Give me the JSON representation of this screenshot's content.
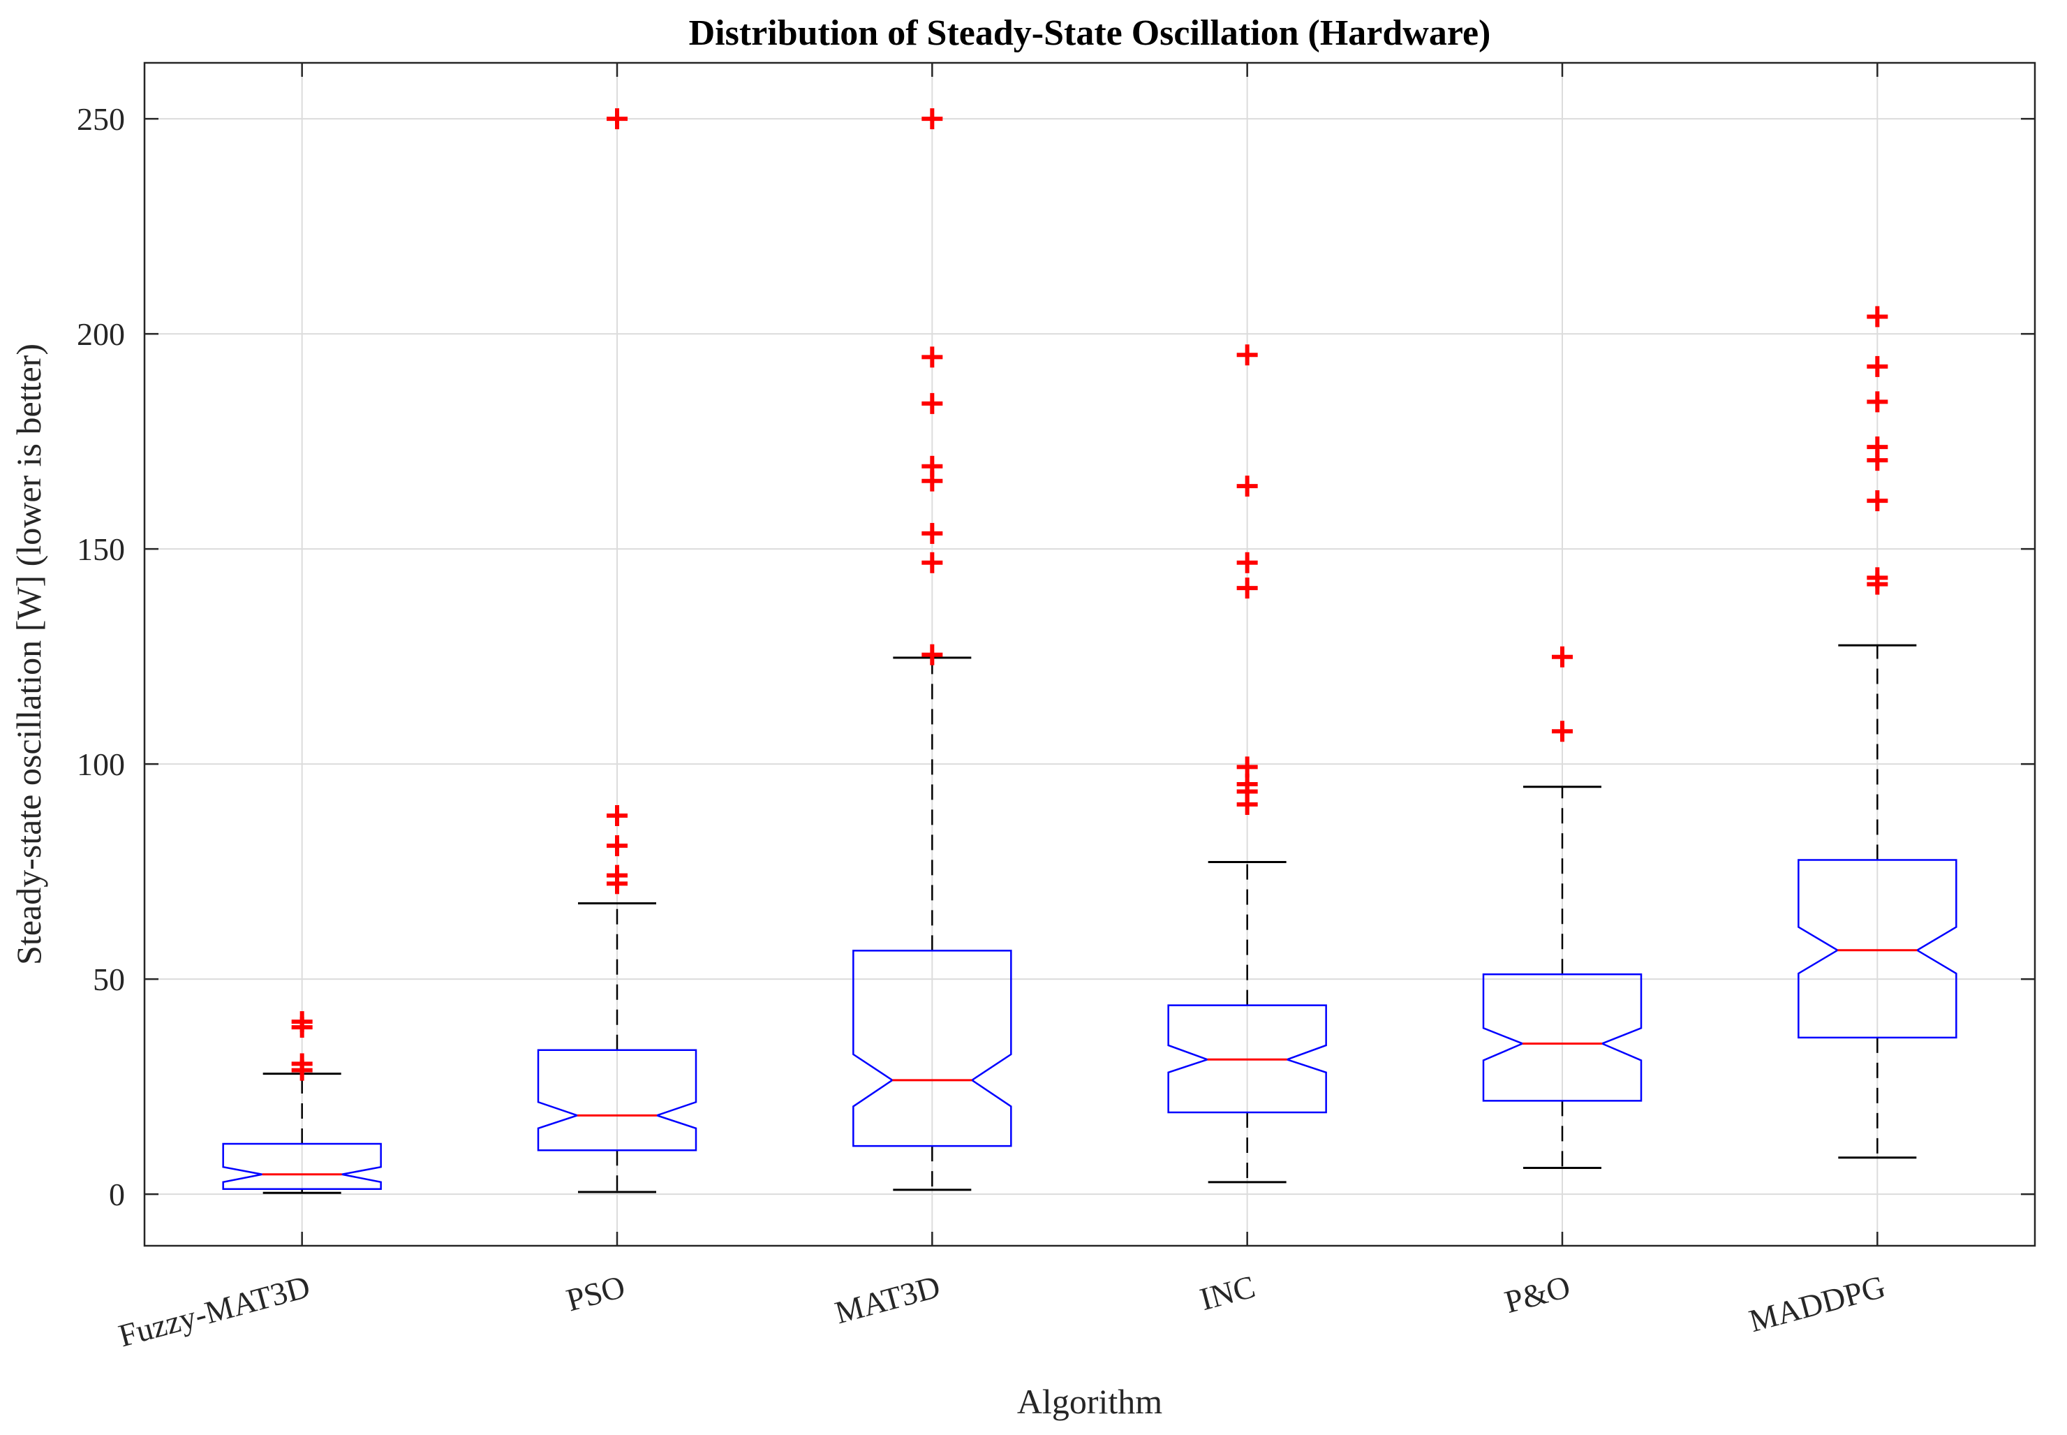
{
  "chart_data": {
    "type": "box",
    "title": "Distribution of Steady-State Oscillation (Hardware)",
    "xlabel": "Algorithm",
    "ylabel": "Steady-state oscillation [W] (lower is better)",
    "ylim": [
      -12,
      263
    ],
    "yticks": [
      0,
      50,
      100,
      150,
      200,
      250
    ],
    "grid": true,
    "notched": true,
    "categories": [
      "Fuzzy-MAT3D",
      "PSO",
      "MAT3D",
      "INC",
      "P&O",
      "MADDPG"
    ],
    "boxes": [
      {
        "category": "Fuzzy-MAT3D",
        "whisker_low": 0.3,
        "q1": 1.2,
        "median": 4.6,
        "q3": 11.7,
        "whisker_high": 28,
        "notch_low": 2.8,
        "notch_high": 6.3,
        "outliers": [
          28.8,
          30.3,
          38.8,
          40.1
        ]
      },
      {
        "category": "PSO",
        "whisker_low": 0.5,
        "q1": 10.2,
        "median": 18.3,
        "q3": 33.5,
        "whisker_high": 67.6,
        "notch_low": 15.3,
        "notch_high": 21.4,
        "outliers": [
          72.2,
          74.1,
          81,
          88,
          250
        ]
      },
      {
        "category": "MAT3D",
        "whisker_low": 1,
        "q1": 11.2,
        "median": 26.5,
        "q3": 56.6,
        "whisker_high": 124.7,
        "notch_low": 20.4,
        "notch_high": 32.5,
        "outliers": [
          125.4,
          146.8,
          153.6,
          165.8,
          169.2,
          183.8,
          194.6,
          250
        ]
      },
      {
        "category": "INC",
        "whisker_low": 2.8,
        "q1": 19,
        "median": 31.3,
        "q3": 43.9,
        "whisker_high": 77.2,
        "notch_low": 28.3,
        "notch_high": 34.6,
        "outliers": [
          90.6,
          93.6,
          95.3,
          99.3,
          140.9,
          146.8,
          164.6,
          195.1
        ]
      },
      {
        "category": "P&O",
        "whisker_low": 6.1,
        "q1": 21.7,
        "median": 35,
        "q3": 51.1,
        "whisker_high": 94.7,
        "notch_low": 31.1,
        "notch_high": 38.6,
        "outliers": [
          107.6,
          124.9
        ]
      },
      {
        "category": "MADDPG",
        "whisker_low": 8.5,
        "q1": 36.4,
        "median": 56.7,
        "q3": 77.7,
        "whisker_high": 127.6,
        "notch_low": 51.3,
        "notch_high": 62.1,
        "outliers": [
          141.8,
          143.3,
          161.2,
          170.6,
          173.7,
          184.2,
          192.4,
          204
        ]
      }
    ]
  },
  "colors": {
    "box": "#0000ff",
    "median": "#ff0000",
    "outlier": "#ff0000",
    "whisker": "#000000",
    "grid": "#dcdcdc",
    "axes": "#262626"
  }
}
